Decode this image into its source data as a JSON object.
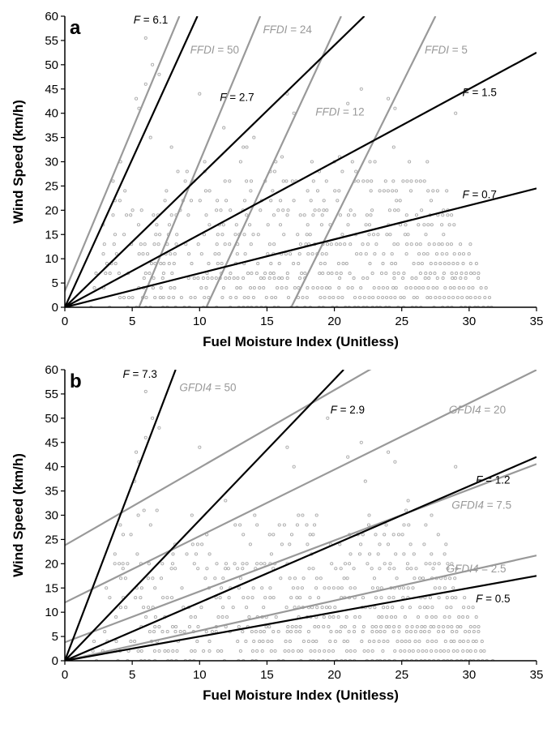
{
  "chart_data": [
    {
      "type": "scatter",
      "panel_label": "a",
      "xlabel": "Fuel Moisture Index (Unitless)",
      "ylabel": "Wind Speed (km/h)",
      "xlim": [
        0,
        35
      ],
      "ylim": [
        0,
        60
      ],
      "xticks": [
        "0",
        "5",
        "10",
        "15",
        "20",
        "25",
        "30",
        "35"
      ],
      "yticks": [
        "0",
        "5",
        "10",
        "15",
        "20",
        "25",
        "30",
        "35",
        "40",
        "45",
        "50",
        "55",
        "60"
      ],
      "grid": false,
      "points": {
        "color": "#aaaaaa",
        "x_range": [
          2,
          32
        ],
        "y_levels": [
          0,
          2,
          4,
          6,
          7,
          9,
          11,
          13,
          15,
          17,
          19,
          20,
          22,
          24,
          26,
          28,
          30,
          31,
          33,
          35,
          37
        ],
        "outliers": [
          [
            5.5,
            41
          ],
          [
            6,
            46
          ],
          [
            6.5,
            50
          ],
          [
            7,
            48
          ],
          [
            6,
            55.5
          ],
          [
            5.3,
            43
          ],
          [
            10,
            44
          ],
          [
            24,
            43
          ],
          [
            24.5,
            41
          ],
          [
            22,
            45
          ],
          [
            17,
            40
          ],
          [
            29,
            40
          ],
          [
            21,
            42
          ],
          [
            16.5,
            44
          ]
        ]
      },
      "fire_danger_lines": [
        {
          "label_prefix": "F",
          "label_value": "6.1",
          "slope": 6.1,
          "intercept": 0,
          "color": "#000000"
        },
        {
          "label_prefix": "F",
          "label_value": "2.7",
          "slope": 2.7,
          "intercept": 0,
          "color": "#000000"
        },
        {
          "label_prefix": "F",
          "label_value": "1.5",
          "slope": 1.5,
          "intercept": 0,
          "color": "#000000"
        },
        {
          "label_prefix": "F",
          "label_value": "0.7",
          "slope": 0.7,
          "intercept": 0,
          "color": "#000000"
        }
      ],
      "index_lines": [
        {
          "label_prefix": "FFDI",
          "label_value": "50",
          "x0": -0.5,
          "x1": 8.5,
          "color": "#999999"
        },
        {
          "label_prefix": "FFDI",
          "label_value": "24",
          "x0": 5.5,
          "x1": 14.5,
          "color": "#999999"
        },
        {
          "label_prefix": "FFDI",
          "label_value": "12",
          "x0": 10.5,
          "x1": 20.5,
          "color": "#999999"
        },
        {
          "label_prefix": "FFDI",
          "label_value": "5",
          "x0": 16.8,
          "x1": 27.5,
          "color": "#999999"
        }
      ]
    },
    {
      "type": "scatter",
      "panel_label": "b",
      "xlabel": "Fuel Moisture Index (Unitless)",
      "ylabel": "Wind Speed (km/h)",
      "xlim": [
        0,
        35
      ],
      "ylim": [
        0,
        60
      ],
      "xticks": [
        "0",
        "5",
        "10",
        "15",
        "20",
        "25",
        "30",
        "35"
      ],
      "yticks": [
        "0",
        "5",
        "10",
        "15",
        "20",
        "25",
        "30",
        "35",
        "40",
        "45",
        "50",
        "55",
        "60"
      ],
      "grid": false,
      "points": {
        "color": "#aaaaaa",
        "x_range": [
          2,
          32
        ],
        "y_levels": [
          0,
          2,
          4,
          6,
          7,
          9,
          11,
          13,
          15,
          17,
          19,
          20,
          22,
          24,
          26,
          28,
          30,
          31,
          33,
          35,
          37
        ],
        "outliers": [
          [
            5.5,
            41
          ],
          [
            6,
            46
          ],
          [
            6.5,
            50
          ],
          [
            7,
            48
          ],
          [
            6,
            55.5
          ],
          [
            5.3,
            43
          ],
          [
            10,
            44
          ],
          [
            24,
            43
          ],
          [
            24.5,
            41
          ],
          [
            22,
            45
          ],
          [
            17,
            40
          ],
          [
            29,
            40
          ],
          [
            21,
            42
          ],
          [
            16.5,
            44
          ],
          [
            19.5,
            50
          ]
        ]
      },
      "fire_danger_lines": [
        {
          "label_prefix": "F",
          "label_value": "7.3",
          "slope": 7.3,
          "intercept": 0,
          "color": "#000000"
        },
        {
          "label_prefix": "F",
          "label_value": "2.9",
          "slope": 2.9,
          "intercept": 0,
          "color": "#000000"
        },
        {
          "label_prefix": "F",
          "label_value": "1.2",
          "slope": 1.2,
          "intercept": 0,
          "color": "#000000"
        },
        {
          "label_prefix": "F",
          "label_value": "0.5",
          "slope": 0.5,
          "intercept": 0,
          "color": "#000000"
        }
      ],
      "index_lines": [
        {
          "label_prefix": "GFDI4",
          "label_value": "50",
          "intercept": 23.8,
          "slope": 1.6,
          "color": "#999999"
        },
        {
          "label_prefix": "GFDI4",
          "label_value": "20",
          "intercept": 12,
          "slope": 1.37,
          "color": "#999999"
        },
        {
          "label_prefix": "GFDI4",
          "label_value": "7.5",
          "intercept": 3.8,
          "slope": 1.05,
          "color": "#999999"
        },
        {
          "label_prefix": "GFDI4",
          "label_value": "2.5",
          "intercept": 0,
          "slope": 0.62,
          "color": "#999999"
        }
      ]
    }
  ]
}
